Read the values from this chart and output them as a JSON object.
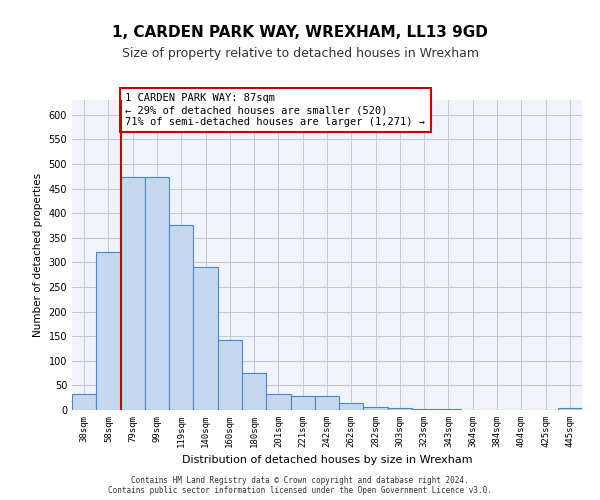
{
  "title": "1, CARDEN PARK WAY, WREXHAM, LL13 9GD",
  "subtitle": "Size of property relative to detached houses in Wrexham",
  "xlabel": "Distribution of detached houses by size in Wrexham",
  "ylabel": "Number of detached properties",
  "bar_labels": [
    "38sqm",
    "58sqm",
    "79sqm",
    "99sqm",
    "119sqm",
    "140sqm",
    "160sqm",
    "180sqm",
    "201sqm",
    "221sqm",
    "242sqm",
    "262sqm",
    "282sqm",
    "303sqm",
    "323sqm",
    "343sqm",
    "364sqm",
    "384sqm",
    "404sqm",
    "425sqm",
    "445sqm"
  ],
  "bar_values": [
    32,
    322,
    473,
    473,
    375,
    290,
    143,
    75,
    33,
    28,
    28,
    14,
    7,
    5,
    2,
    2,
    1,
    1,
    1,
    0,
    5
  ],
  "bar_color": "#c5d8f0",
  "bar_edge_color": "#4a86c8",
  "vline_x": 1,
  "vline_color": "#cc0000",
  "ylim": [
    0,
    630
  ],
  "yticks": [
    0,
    50,
    100,
    150,
    200,
    250,
    300,
    350,
    400,
    450,
    500,
    550,
    600
  ],
  "annotation_text": "1 CARDEN PARK WAY: 87sqm\n← 29% of detached houses are smaller (520)\n71% of semi-detached houses are larger (1,271) →",
  "annotation_box_color": "#ffffff",
  "annotation_box_edge": "#cc0000",
  "background_color": "#f0f4fa",
  "footer_line1": "Contains HM Land Registry data © Crown copyright and database right 2024.",
  "footer_line2": "Contains public sector information licensed under the Open Government Licence v3.0."
}
